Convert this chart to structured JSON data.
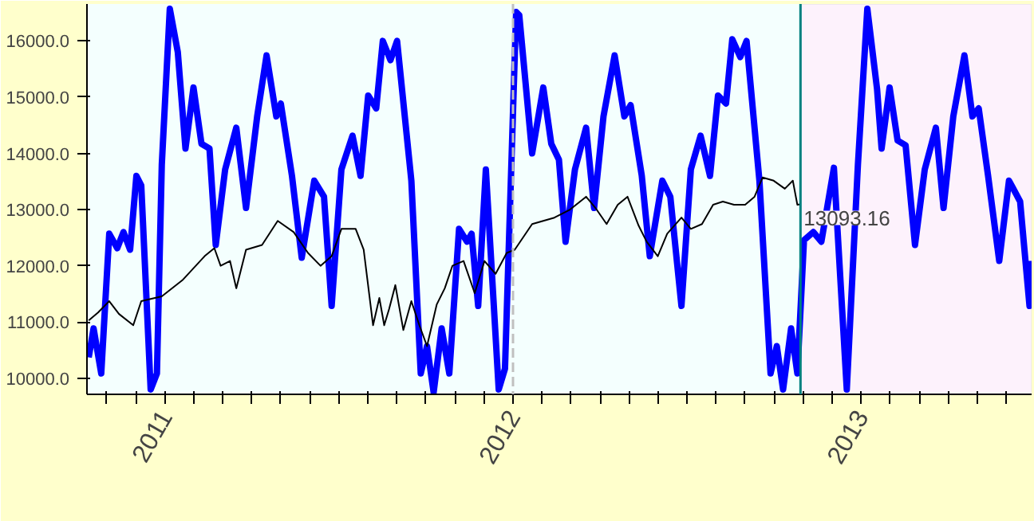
{
  "chart_data": {
    "type": "line",
    "xlim": [
      2010.776,
      2013.49
    ],
    "ylim": [
      9714,
      16657
    ],
    "xticks": [
      {
        "value": 2010.833,
        "label": null
      },
      {
        "value": 2010.917,
        "label": null
      },
      2011,
      {
        "value": 2011.083,
        "label": null
      },
      {
        "value": 2011.167,
        "label": null
      },
      {
        "value": 2011.25,
        "label": null
      },
      {
        "value": 2011.333,
        "label": null
      },
      {
        "value": 2011.417,
        "label": null
      },
      {
        "value": 2011.5,
        "label": null
      },
      {
        "value": 2011.583,
        "label": null
      },
      {
        "value": 2011.667,
        "label": null
      },
      {
        "value": 2011.75,
        "label": null
      },
      {
        "value": 2011.833,
        "label": null
      },
      {
        "value": 2011.917,
        "label": null
      },
      2012,
      {
        "value": 2012.083,
        "label": null
      },
      {
        "value": 2012.167,
        "label": null
      },
      {
        "value": 2012.25,
        "label": null
      },
      {
        "value": 2012.333,
        "label": null
      },
      {
        "value": 2012.417,
        "label": null
      },
      {
        "value": 2012.5,
        "label": null
      },
      {
        "value": 2012.583,
        "label": null
      },
      {
        "value": 2012.667,
        "label": null
      },
      {
        "value": 2012.75,
        "label": null
      },
      {
        "value": 2012.833,
        "label": null
      },
      {
        "value": 2012.917,
        "label": null
      },
      2013,
      {
        "value": 2013.083,
        "label": null
      },
      {
        "value": 2013.167,
        "label": null
      },
      {
        "value": 2013.25,
        "label": null
      },
      {
        "value": 2013.333,
        "label": null
      },
      {
        "value": 2013.417,
        "label": null
      }
    ],
    "yticks": [
      {
        "value": 10000,
        "label": "10000.0"
      },
      {
        "value": 11000,
        "label": "11000.0"
      },
      {
        "value": 12000,
        "label": "12000.0"
      },
      {
        "value": 13000,
        "label": "13000.0"
      },
      {
        "value": 14000,
        "label": "14000.0"
      },
      {
        "value": 15000,
        "label": "15000.0"
      },
      {
        "value": 16000,
        "label": "16000.0"
      }
    ],
    "grid": false,
    "marker": "none",
    "line_style": "solid",
    "series": [
      {
        "color": "#0000ff",
        "x": [
          2010.781,
          2010.795,
          2010.817,
          2010.84,
          2010.863,
          2010.881,
          2010.9,
          2010.918,
          2010.932,
          2010.959,
          2010.977,
          2010.991,
          2011.014,
          2011.037,
          2011.059,
          2011.082,
          2011.105,
          2011.128,
          2011.146,
          2011.173,
          2011.205,
          2011.233,
          2011.265,
          2011.292,
          2011.32,
          2011.333,
          2011.365,
          2011.393,
          2011.429,
          2011.457,
          2011.479,
          2011.507,
          2011.539,
          2011.562,
          2011.584,
          2011.607,
          2011.626,
          2011.648,
          2011.667,
          2011.708,
          2011.735,
          2011.753,
          2011.772,
          2011.795,
          2011.817,
          2011.845,
          2011.868,
          2011.881,
          2011.9,
          2011.922,
          2011.959,
          2011.977,
          2012.009,
          2012.018,
          2012.055,
          2012.087,
          2012.11,
          2012.132,
          2012.151,
          2012.178,
          2012.21,
          2012.233,
          2012.26,
          2012.292,
          2012.32,
          2012.338,
          2012.37,
          2012.393,
          2012.429,
          2012.452,
          2012.484,
          2012.511,
          2012.539,
          2012.566,
          2012.589,
          2012.612,
          2012.63,
          2012.653,
          2012.671,
          2012.708,
          2012.74,
          2012.758,
          2012.776,
          2012.799,
          2012.817,
          2012.836,
          2012.863,
          2012.886,
          2012.922,
          2012.959,
          2012.991,
          2013.018,
          2013.046,
          2013.059,
          2013.082,
          2013.105,
          2013.128,
          2013.155,
          2013.183,
          2013.215,
          2013.237,
          2013.265,
          2013.297,
          2013.32,
          2013.338,
          2013.365,
          2013.397,
          2013.425,
          2013.457,
          2013.484,
          2013.49
        ],
        "values": [
          10371,
          10886,
          10086,
          12571,
          12314,
          12600,
          12286,
          13600,
          13429,
          9800,
          10086,
          13800,
          16571,
          15800,
          14086,
          15171,
          14171,
          14086,
          12371,
          13714,
          14457,
          13029,
          14657,
          15743,
          14657,
          14886,
          13600,
          12143,
          13514,
          13229,
          11286,
          13714,
          14314,
          13600,
          15029,
          14800,
          16000,
          15657,
          16000,
          13514,
          10086,
          10571,
          9750,
          10886,
          10086,
          12657,
          12429,
          12571,
          11286,
          13714,
          9800,
          10171,
          16514,
          16457,
          14000,
          15171,
          14171,
          13886,
          12429,
          13714,
          14457,
          13029,
          14657,
          15743,
          14657,
          14857,
          13600,
          12171,
          13514,
          13229,
          11286,
          13714,
          14314,
          13600,
          15029,
          14886,
          16029,
          15714,
          16000,
          13514,
          10086,
          10571,
          9800,
          10886,
          10086,
          12457,
          12600,
          12429,
          13743,
          9800,
          13800,
          16571,
          15143,
          14086,
          15171,
          14229,
          14143,
          12371,
          13714,
          14457,
          13029,
          14657,
          15743,
          14657,
          14800,
          13600,
          12086,
          13514,
          13143,
          11286,
          12086
        ]
      },
      {
        "color": "#000000",
        "x": [
          2010.781,
          2010.808,
          2010.84,
          2010.868,
          2010.909,
          2010.932,
          2010.991,
          2011.05,
          2011.114,
          2011.142,
          2011.16,
          2011.187,
          2011.205,
          2011.233,
          2011.279,
          2011.324,
          2011.37,
          2011.411,
          2011.447,
          2011.479,
          2011.507,
          2011.548,
          2011.571,
          2011.598,
          2011.616,
          2011.63,
          2011.644,
          2011.662,
          2011.685,
          2011.708,
          2011.731,
          2011.753,
          2011.781,
          2011.804,
          2011.826,
          2011.858,
          2011.89,
          2011.918,
          2011.95,
          2011.982,
          2012.005,
          2012.055,
          2012.119,
          2012.164,
          2012.21,
          2012.237,
          2012.269,
          2012.301,
          2012.329,
          2012.361,
          2012.384,
          2012.416,
          2012.443,
          2012.484,
          2012.511,
          2012.543,
          2012.575,
          2012.603,
          2012.635,
          2012.667,
          2012.694,
          2012.717,
          2012.749,
          2012.781,
          2012.804,
          2012.817,
          2012.826
        ],
        "values": [
          11029,
          11171,
          11371,
          11143,
          10943,
          11371,
          11457,
          11743,
          12171,
          12314,
          12000,
          12086,
          11600,
          12286,
          12371,
          12800,
          12600,
          12229,
          12000,
          12171,
          12657,
          12657,
          12286,
          10943,
          11429,
          10943,
          11229,
          11657,
          10857,
          11371,
          10943,
          10571,
          11314,
          11600,
          12000,
          12086,
          11514,
          12086,
          11857,
          12229,
          12286,
          12743,
          12857,
          13000,
          13229,
          13029,
          12743,
          13086,
          13229,
          12714,
          12429,
          12171,
          12571,
          12857,
          12657,
          12743,
          13086,
          13143,
          13086,
          13086,
          13229,
          13571,
          13514,
          13371,
          13514,
          13086,
          13093.16
        ]
      }
    ],
    "ref_lines": [
      {
        "axis": "x",
        "value": 2012,
        "color": "#c0c0c0",
        "line_style": "dashed"
      },
      {
        "axis": "x",
        "value": 2012.826,
        "color": "#008080",
        "line_style": "solid"
      }
    ],
    "bands": [
      {
        "axis": "x",
        "from": 2012.826,
        "to": 2013.49,
        "color": "#fdf2fc"
      }
    ],
    "annotations": [
      {
        "text": "13093.16",
        "x": 2012.826,
        "y": 13093.16
      }
    ]
  }
}
